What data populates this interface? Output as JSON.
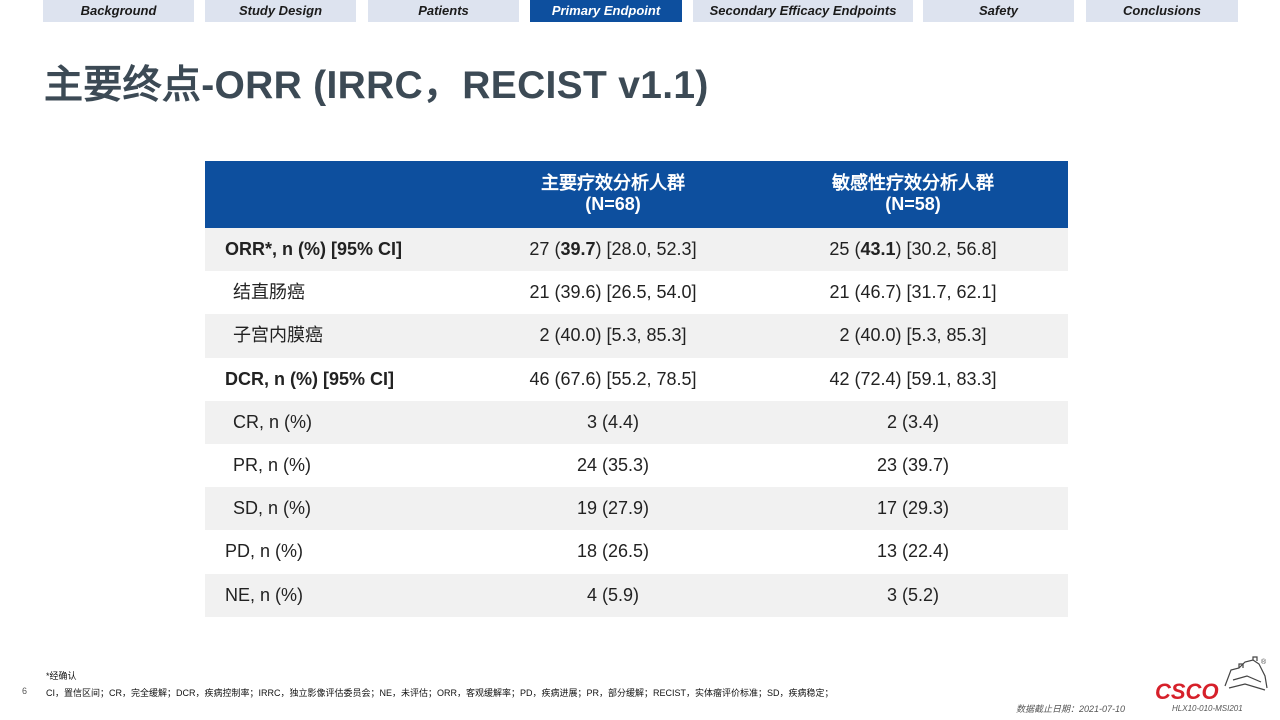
{
  "nav": {
    "tabs": [
      {
        "label": "Background",
        "active": false
      },
      {
        "label": "Study Design",
        "active": false
      },
      {
        "label": "Patients",
        "active": false
      },
      {
        "label": "Primary Endpoint",
        "active": true
      },
      {
        "label": "Secondary Efficacy Endpoints",
        "active": false
      },
      {
        "label": "Safety",
        "active": false
      },
      {
        "label": "Conclusions",
        "active": false
      }
    ]
  },
  "title": "主要终点-ORR (IRRC，RECIST v1.1)",
  "table": {
    "headers": [
      {
        "line1": "主要疗效分析人群",
        "line2": "(N=68)"
      },
      {
        "line1": "敏感性疗效分析人群",
        "line2": "(N=58)"
      }
    ],
    "rows": [
      {
        "label": "ORR*, n (%) [95% CI]",
        "bold": true,
        "indent": false,
        "c1": {
          "pre": "27 (",
          "bold": "39.7",
          "post": ") [28.0, 52.3]"
        },
        "c2": {
          "pre": "25 (",
          "bold": "43.1",
          "post": ") [30.2, 56.8]"
        }
      },
      {
        "label": "结直肠癌",
        "indent": true,
        "c1": "21 (39.6) [26.5, 54.0]",
        "c2": "21 (46.7) [31.7, 62.1]"
      },
      {
        "label": "子宫内膜癌",
        "indent": true,
        "c1": "2 (40.0) [5.3, 85.3]",
        "c2": "2 (40.0) [5.3, 85.3]"
      },
      {
        "label": "DCR, n (%) [95% CI]",
        "bold": true,
        "c1": "46 (67.6) [55.2, 78.5]",
        "c2": "42 (72.4) [59.1, 83.3]"
      },
      {
        "label": "CR, n (%)",
        "indent": true,
        "c1": "3 (4.4)",
        "c2": "2 (3.4)"
      },
      {
        "label": "PR, n (%)",
        "indent": true,
        "c1": "24 (35.3)",
        "c2": "23 (39.7)"
      },
      {
        "label": "SD, n (%)",
        "indent": true,
        "c1": "19 (27.9)",
        "c2": "17 (29.3)"
      },
      {
        "label": "PD, n (%)",
        "c1": "18 (26.5)",
        "c2": "13 (22.4)"
      },
      {
        "label": "NE, n (%)",
        "c1": "4 (5.9)",
        "c2": "3 (5.2)"
      }
    ]
  },
  "footnotes": {
    "asterisk": "*经确认",
    "abbreviations": "CI，置信区间；CR，完全缓解；DCR，疾病控制率；IRRC，独立影像评估委员会；NE，未评估；ORR，客观缓解率；PD，疾病进展；PR，部分缓解；RECIST，实体瘤评价标准；SD，疾病稳定；"
  },
  "page_number": "6",
  "cutoff_date": "数据截止日期：2021-07-10",
  "study_code": "HLX10-010-MSI201",
  "logo": {
    "text": "CSCO",
    "mark": "®"
  },
  "colors": {
    "accent": "#0d4f9e",
    "tab_bg": "#dde3ef",
    "title": "#3c4a55",
    "logo_red": "#d6202a",
    "row_shade": "#f1f1f1"
  }
}
